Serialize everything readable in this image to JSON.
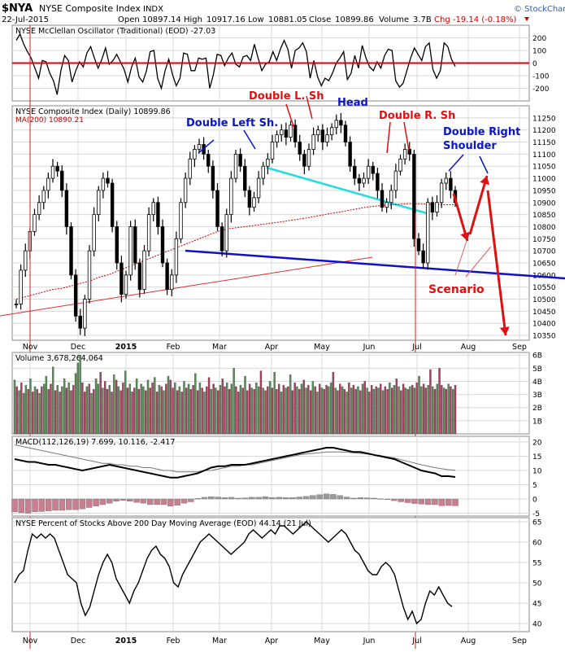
{
  "header": {
    "symbol": "$NYA",
    "name": "NYSE Composite Index",
    "exchange": "INDX",
    "date": "22-Jul-2015",
    "open_label": "Open",
    "open": "10897.14",
    "high_label": "High",
    "high": "10917.16",
    "low_label": "Low",
    "low": "10881.05",
    "close_label": "Close",
    "close": "10899.86",
    "volume_label": "Volume",
    "volume": "3.7B",
    "change": "Chg -19.14 (-0.18%)",
    "copyright": "© StockCharts.com"
  },
  "colors": {
    "up": "#5a8f5a",
    "down": "#b04060",
    "ma": "#cc0000",
    "annot_red": "#e01010",
    "annot_blue": "#0a14c8",
    "cyan": "#22dddd",
    "trend_red": "#e03030",
    "trend_blue": "#1010cc",
    "grid": "#d8d8d8",
    "panel_bg": "#ffffff"
  },
  "chart_data": [
    {
      "type": "line",
      "title": "NYSE McClellan Oscillator (Traditional) (EOD) -27.03",
      "ylim": [
        -300,
        300
      ],
      "yticks": [
        "200",
        "100",
        "0",
        "-100",
        "-200"
      ],
      "ytick_values": [
        200,
        100,
        0,
        -100,
        -200
      ],
      "reference_line": 0,
      "values": [
        180,
        230,
        150,
        90,
        40,
        -40,
        -120,
        20,
        10,
        -80,
        -140,
        -250,
        -60,
        60,
        20,
        -150,
        -60,
        10,
        -30,
        80,
        130,
        40,
        -40,
        30,
        120,
        -10,
        20,
        70,
        10,
        -50,
        -150,
        -30,
        40,
        -110,
        -150,
        -60,
        90,
        100,
        -120,
        -200,
        -60,
        30,
        -90,
        -180,
        -120,
        80,
        70,
        -60,
        -60,
        40,
        30,
        40,
        -200,
        -90,
        70,
        60,
        -20,
        40,
        80,
        -10,
        -30,
        50,
        60,
        20,
        150,
        40,
        -60,
        -10,
        10,
        90,
        20,
        110,
        180,
        110,
        -40,
        100,
        120,
        160,
        90,
        -120,
        20,
        -110,
        -180,
        -120,
        -140,
        -80,
        0,
        40,
        90,
        -130,
        -80,
        60,
        -40,
        140,
        40,
        -30,
        -60,
        10,
        -40,
        60,
        110,
        100,
        -140,
        -190,
        -160,
        -60,
        40,
        120,
        70,
        20,
        130,
        160,
        -50,
        -120,
        -60,
        160,
        130,
        30,
        -27
      ]
    },
    {
      "type": "line",
      "title": "NYSE Composite Index (Daily) 10899.86",
      "legend": "MA(200) 10890.21",
      "ylim": [
        10330,
        11300
      ],
      "yticks": [
        "11250",
        "11200",
        "11150",
        "11100",
        "11050",
        "11000",
        "10950",
        "10900",
        "10850",
        "10800",
        "10750",
        "10700",
        "10650",
        "10600",
        "10550",
        "10500",
        "10450",
        "10400",
        "10350"
      ],
      "ytick_values": [
        11250,
        11200,
        11150,
        11100,
        11050,
        11000,
        10950,
        10900,
        10850,
        10800,
        10750,
        10700,
        10650,
        10600,
        10550,
        10500,
        10450,
        10400,
        10350
      ],
      "x_labels": [
        "Nov",
        "Dec",
        "2015",
        "Feb",
        "Mar",
        "Apr",
        "May",
        "Jun",
        "Jul",
        "Aug",
        "Sep"
      ],
      "close": [
        10480,
        10620,
        10700,
        10780,
        10850,
        10900,
        10950,
        11000,
        11050,
        11030,
        10950,
        10800,
        10600,
        10430,
        10380,
        10500,
        10700,
        10850,
        10950,
        11000,
        10980,
        10800,
        10650,
        10520,
        10600,
        10800,
        10650,
        10540,
        10700,
        10850,
        10900,
        10800,
        10650,
        10540,
        10600,
        10750,
        10900,
        11000,
        11080,
        11120,
        11140,
        11100,
        11050,
        10950,
        10800,
        10700,
        10850,
        11000,
        11100,
        11050,
        10950,
        10880,
        10920,
        11000,
        11050,
        11080,
        11150,
        11180,
        11200,
        11170,
        11220,
        11150,
        11100,
        11050,
        11120,
        11180,
        11200,
        11150,
        11180,
        11210,
        11240,
        11220,
        11150,
        11050,
        11000,
        10980,
        11000,
        11050,
        11020,
        10950,
        10880,
        10900,
        10950,
        11030,
        11080,
        11120,
        11100,
        10750,
        10700,
        10650,
        10900,
        10860,
        10900,
        10980,
        11000,
        10950,
        10900
      ],
      "ma200": [
        10500,
        10510,
        10520,
        10530,
        10540,
        10545,
        10555,
        10565,
        10575,
        10590,
        10600,
        10615,
        10630,
        10645,
        10660,
        10675,
        10690,
        10705,
        10720,
        10735,
        10750,
        10765,
        10780,
        10790,
        10795,
        10800,
        10805,
        10810,
        10815,
        10820,
        10826,
        10832,
        10838,
        10845,
        10852,
        10858,
        10865,
        10872,
        10879,
        10884,
        10888,
        10890,
        10893,
        10895,
        10895,
        10893,
        10892,
        10891,
        10890
      ],
      "annotations": [
        {
          "text": "Double Left Sh.",
          "color": "blue"
        },
        {
          "text": "Double L. Sh",
          "color": "red"
        },
        {
          "text": "Head",
          "color": "blue"
        },
        {
          "text": "Double R. Sh",
          "color": "red"
        },
        {
          "text": "Double Right",
          "color": "blue"
        },
        {
          "text": "Shoulder",
          "color": "blue"
        },
        {
          "text": "Scenario",
          "color": "red"
        }
      ]
    },
    {
      "type": "bar",
      "title": "Volume 3,678,264,064",
      "ylim": [
        0,
        6.2
      ],
      "yticks": [
        "6B",
        "5B",
        "4B",
        "3B",
        "2B",
        "1B"
      ],
      "ytick_values": [
        6,
        5,
        4,
        3,
        2,
        1
      ],
      "values": [
        4.1,
        3.6,
        3.3,
        3.9,
        3.1,
        3.7,
        3.4,
        4.2,
        3.2,
        3.6,
        3.4,
        3.1,
        3.6,
        3.8,
        4.4,
        3.4,
        3.8,
        5.1,
        3.3,
        3.7,
        3.2,
        3.6,
        4.2,
        3.5,
        3.9,
        3.3,
        3.7,
        4.6,
        5.4,
        6.0,
        3.9,
        3.2,
        3.6,
        3.8,
        3.1,
        3.4,
        4.2,
        3.8,
        4.7,
        3.5,
        4.0,
        3.4,
        3.7,
        3.2,
        4.5,
        4.1,
        3.6,
        3.3,
        3.9,
        4.8,
        3.5,
        3.8,
        3.2,
        3.5,
        4.2,
        3.4,
        3.8,
        3.6,
        3.3,
        4.1,
        3.5,
        3.9,
        4.3,
        3.2,
        3.7,
        3.6,
        3.3,
        3.8,
        4.4,
        4.1,
        3.5,
        3.9,
        3.3,
        3.6,
        3.2,
        4.0,
        3.5,
        3.8,
        3.4,
        3.7,
        4.6,
        3.3,
        3.9,
        3.5,
        3.2,
        3.6,
        4.3,
        3.4,
        3.8,
        3.5,
        3.3,
        3.7,
        4.2,
        3.6,
        3.9,
        3.4,
        3.8,
        5.0,
        3.6,
        3.2,
        3.7,
        3.5,
        4.4,
        3.3,
        3.8,
        3.5,
        3.4,
        3.9,
        3.6,
        4.8,
        3.5,
        3.3,
        3.6,
        4.0,
        3.5,
        4.7,
        3.4,
        3.8,
        3.2,
        3.7,
        3.5,
        3.6,
        4.5,
        3.3,
        3.9,
        3.6,
        3.4,
        3.8,
        4.1,
        3.5,
        3.7,
        3.3,
        4.0,
        3.6,
        3.2,
        3.8,
        3.5,
        3.4,
        3.7,
        3.6,
        3.9,
        4.7,
        3.5,
        3.3,
        3.8,
        3.6,
        3.4,
        3.2,
        3.9,
        3.5,
        3.7,
        3.4,
        3.6,
        3.3,
        3.8,
        4.0,
        3.5,
        3.2,
        3.7,
        3.4,
        3.6,
        3.5,
        3.8,
        3.3,
        3.6,
        3.4,
        3.9,
        3.5,
        3.7,
        4.2,
        3.6,
        3.3,
        3.8,
        3.5,
        3.4,
        3.6,
        3.7,
        3.5,
        3.9,
        4.4,
        3.6,
        3.8,
        3.5,
        3.7,
        4.9,
        3.6,
        3.4,
        3.8,
        5.0,
        3.7,
        3.5,
        3.4,
        3.8,
        3.6,
        3.4,
        3.7
      ],
      "up": [
        1,
        0,
        1,
        0,
        1,
        1,
        0,
        1,
        0,
        1,
        0,
        1,
        0,
        1,
        1,
        0,
        0,
        1,
        0,
        1,
        0,
        1,
        1,
        0,
        1,
        0,
        0,
        1,
        1,
        1,
        0,
        0,
        1,
        0,
        1,
        0,
        1,
        1,
        0,
        1,
        0,
        0,
        1,
        0,
        1,
        0,
        1,
        0,
        0,
        1,
        0,
        1,
        0,
        0,
        1,
        0,
        1,
        1,
        0,
        1,
        0,
        0,
        1,
        0,
        1,
        0,
        1,
        0,
        1,
        0,
        0,
        1,
        0,
        1,
        0,
        1,
        0,
        1,
        0,
        0,
        1,
        0,
        1,
        0,
        1,
        0,
        0,
        1,
        0,
        1,
        0,
        1,
        0,
        0,
        1,
        0,
        1,
        1,
        0,
        0,
        1,
        0,
        1,
        0,
        0,
        1,
        0,
        1,
        1,
        0,
        1,
        0,
        0,
        1,
        0,
        1,
        0,
        0,
        1,
        0,
        1,
        0,
        1,
        0,
        0,
        1,
        0,
        1,
        0,
        1,
        0,
        0,
        1,
        0,
        1,
        0,
        1,
        0,
        0,
        1,
        1,
        0,
        1,
        0,
        0,
        1,
        0,
        1,
        0,
        1,
        0,
        0,
        1,
        0,
        1,
        0,
        1,
        0,
        0,
        1,
        0,
        1,
        0,
        1,
        0,
        0,
        1,
        0,
        1,
        0,
        1,
        0,
        0,
        1,
        0,
        1,
        0,
        1,
        0,
        1,
        1,
        0,
        0,
        1,
        0,
        1,
        0,
        1,
        0,
        0,
        1,
        0,
        1,
        0,
        1,
        0
      ]
    },
    {
      "type": "line",
      "title": "MACD(112,126,19) 7.699, 10.116, -2.417",
      "ylim": [
        -6,
        22
      ],
      "yticks": [
        "20",
        "15",
        "10",
        "5",
        "0",
        "-5"
      ],
      "ytick_values": [
        20,
        15,
        10,
        5,
        0,
        -5
      ],
      "macd": [
        14,
        13.5,
        13,
        13,
        12.5,
        12,
        12,
        11.5,
        11,
        10.5,
        10,
        10.5,
        11,
        11.5,
        12,
        11.5,
        11,
        10.5,
        10,
        9.5,
        9,
        8.5,
        8,
        7.5,
        7.5,
        8,
        8.5,
        9,
        10,
        11,
        11.5,
        11.5,
        12,
        12,
        12,
        12.5,
        13,
        13.5,
        14,
        14.5,
        15,
        15.5,
        16,
        16.5,
        17,
        17.5,
        18,
        18,
        17.5,
        17,
        16.5,
        16.5,
        16,
        15.5,
        15,
        14.5,
        14,
        13,
        12,
        11,
        10,
        9.5,
        9,
        8,
        8,
        7.7
      ],
      "signal": [
        19,
        18.5,
        18,
        17.5,
        17,
        16.5,
        16,
        15.5,
        15,
        14.5,
        14,
        13.5,
        13,
        12.5,
        12.5,
        12,
        12,
        11.5,
        11.5,
        11,
        11,
        10.5,
        10,
        10,
        9.5,
        9.5,
        9.5,
        9.5,
        10,
        10,
        10.5,
        11,
        11.5,
        11.5,
        12,
        12,
        12.5,
        13,
        13.5,
        14,
        14.5,
        15,
        15.5,
        15.8,
        16,
        16.2,
        16.5,
        16.5,
        16.5,
        16.4,
        16.2,
        16,
        15.8,
        15.5,
        15.2,
        14.8,
        14.4,
        13.8,
        13.2,
        12.6,
        12,
        11.5,
        11,
        10.6,
        10.3,
        10.1
      ],
      "histogram": [
        -4.5,
        -4.8,
        -5,
        -4.5,
        -4.4,
        -4.2,
        -4,
        -4,
        -3.8,
        -3.8,
        -3.5,
        -3,
        -2.5,
        -2,
        -1.5,
        -0.8,
        -0.5,
        -0.8,
        -1.2,
        -1.5,
        -2,
        -2,
        -2,
        -2.5,
        -2.2,
        -1.5,
        -1,
        0.2,
        0.6,
        0.8,
        0.7,
        0.5,
        0.6,
        0.3,
        0.4,
        0.6,
        0.6,
        0.8,
        0.5,
        0.6,
        0.5,
        0.5,
        0.7,
        0.9,
        1.2,
        1.5,
        1.8,
        1.6,
        1.2,
        0.7,
        0.3,
        0.5,
        0.4,
        0.3,
        0.1,
        -0.2,
        -0.6,
        -1,
        -1.3,
        -1.6,
        -1.8,
        -2,
        -2,
        -2.4,
        -2.3,
        -2.4
      ]
    },
    {
      "type": "line",
      "title": "NYSE Percent of Stocks Above 200 Day Moving Average (EOD) 44.14 (21 Jul)",
      "ylim": [
        38,
        66
      ],
      "yticks": [
        "65",
        "60",
        "55",
        "50",
        "45",
        "40"
      ],
      "ytick_values": [
        65,
        60,
        55,
        50,
        45,
        40
      ],
      "x_labels": [
        "Nov",
        "Dec",
        "2015",
        "Feb",
        "Mar",
        "Apr",
        "May",
        "Jun",
        "Jul",
        "Aug",
        "Sep"
      ],
      "values": [
        50,
        52,
        53,
        58,
        62,
        61,
        62,
        61,
        62,
        61,
        58,
        55,
        52,
        51,
        50,
        45,
        42,
        44,
        48,
        52,
        55,
        57,
        55,
        51,
        49,
        47,
        45,
        48,
        50,
        53,
        56,
        58,
        59,
        57,
        56,
        54,
        50,
        49,
        52,
        54,
        56,
        58,
        60,
        61,
        62,
        61,
        60,
        59,
        58,
        57,
        58,
        59,
        60,
        62,
        63,
        62,
        61,
        62,
        63,
        62,
        64,
        64,
        63,
        62,
        63,
        64,
        65,
        64,
        63,
        62,
        61,
        60,
        61,
        62,
        63,
        62,
        60,
        58,
        57,
        55,
        53,
        52,
        52,
        54,
        55,
        54,
        52,
        48,
        44,
        41,
        43,
        40,
        41,
        45,
        48,
        47,
        49,
        47,
        45,
        44.14
      ]
    }
  ]
}
